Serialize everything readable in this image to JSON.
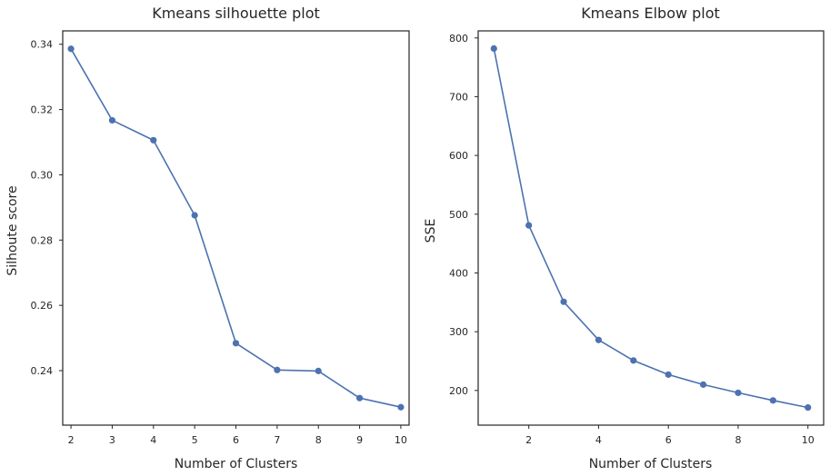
{
  "chart_data": [
    {
      "type": "line",
      "title": "Kmeans silhouette plot",
      "xlabel": "Number of Clusters",
      "ylabel": "Silhoute score",
      "x": [
        2,
        3,
        4,
        5,
        6,
        7,
        8,
        9,
        10
      ],
      "series": [
        {
          "values": [
            0.3386,
            0.3167,
            0.3106,
            0.2876,
            0.2484,
            0.2402,
            0.2399,
            0.2316,
            0.2288
          ]
        }
      ],
      "xticks": [
        2,
        3,
        4,
        5,
        6,
        7,
        8,
        9,
        10
      ],
      "yticks": [
        0.24,
        0.26,
        0.28,
        0.3,
        0.32,
        0.34
      ],
      "ytick_labels": [
        "0.24",
        "0.26",
        "0.28",
        "0.30",
        "0.32",
        "0.34"
      ],
      "xlim": [
        1.8,
        10.2
      ],
      "ylim": [
        0.2233,
        0.3441
      ],
      "grid": false,
      "color": "#4c72b0"
    },
    {
      "type": "line",
      "title": "Kmeans Elbow plot",
      "xlabel": "Number of Clusters",
      "ylabel": "SSE",
      "x": [
        1,
        2,
        3,
        4,
        5,
        6,
        7,
        8,
        9,
        10
      ],
      "series": [
        {
          "values": [
            782,
            481,
            351,
            286,
            251,
            227,
            210,
            196,
            183,
            171
          ]
        }
      ],
      "xticks": [
        2,
        4,
        6,
        8,
        10
      ],
      "yticks": [
        200,
        300,
        400,
        500,
        600,
        700,
        800
      ],
      "ytick_labels": [
        "200",
        "300",
        "400",
        "500",
        "600",
        "700",
        "800"
      ],
      "xlim": [
        0.55,
        10.45
      ],
      "ylim": [
        141,
        812
      ],
      "grid": false,
      "color": "#4c72b0"
    }
  ]
}
